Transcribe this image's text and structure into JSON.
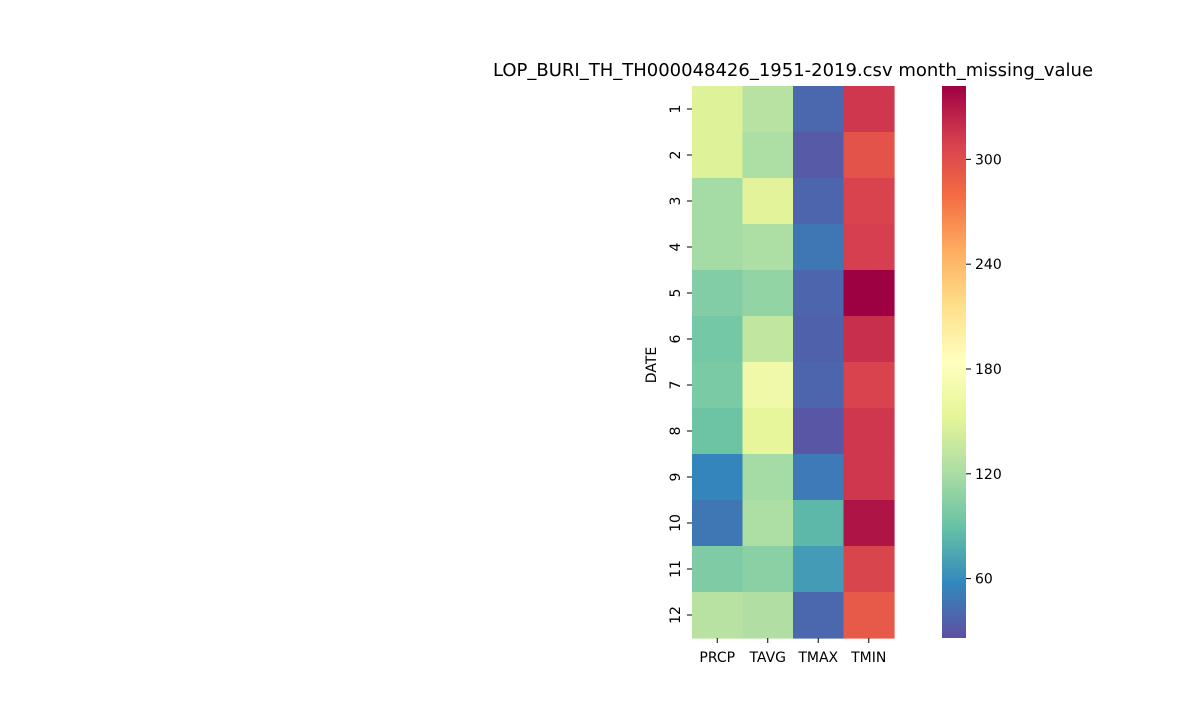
{
  "chart_data": {
    "type": "heatmap",
    "title": "LOP_BURI_TH_TH000048426_1951-2019.csv month_missing_value",
    "ylabel": "DATE",
    "xlabel": "",
    "columns": [
      "PRCP",
      "TAVG",
      "TMAX",
      "TMIN"
    ],
    "rows": [
      "1",
      "2",
      "3",
      "4",
      "5",
      "6",
      "7",
      "8",
      "9",
      "10",
      "11",
      "12"
    ],
    "values": [
      [
        148,
        128,
        40,
        314
      ],
      [
        148,
        122,
        32,
        296
      ],
      [
        118,
        150,
        38,
        307
      ],
      [
        118,
        122,
        48,
        310
      ],
      [
        102,
        110,
        38,
        342
      ],
      [
        96,
        132,
        36,
        318
      ],
      [
        98,
        165,
        38,
        307
      ],
      [
        92,
        154,
        30,
        314
      ],
      [
        56,
        118,
        50,
        314
      ],
      [
        48,
        122,
        84,
        332
      ],
      [
        100,
        106,
        68,
        306
      ],
      [
        128,
        124,
        40,
        292
      ]
    ],
    "colorbar": {
      "colormap": "Spectral_r",
      "vmin": 26,
      "vmax": 342,
      "ticks": [
        60,
        120,
        180,
        240,
        300
      ]
    },
    "colormap_stops": [
      "#5e4fa2",
      "#3288bd",
      "#66c2a5",
      "#abdda4",
      "#e6f598",
      "#ffffbf",
      "#fee08b",
      "#fdae61",
      "#f46d43",
      "#d53e4f",
      "#9e0142"
    ]
  }
}
